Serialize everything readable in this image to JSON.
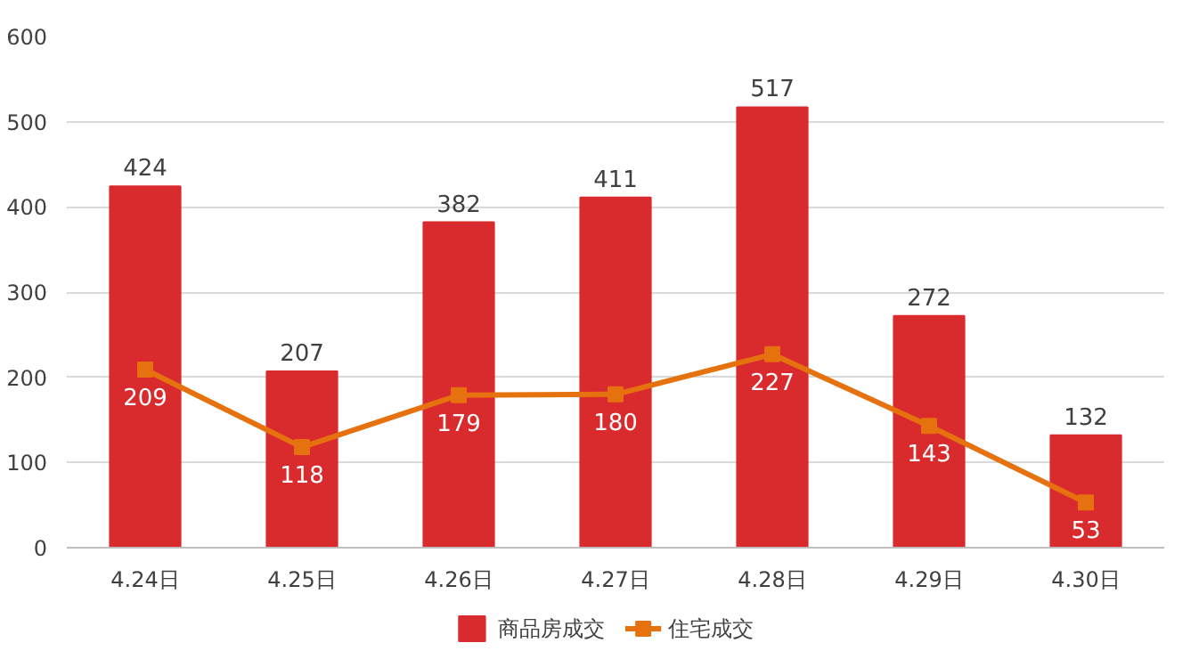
{
  "chart_data": {
    "type": "bar",
    "categories": [
      "4.24日",
      "4.25日",
      "4.26日",
      "4.27日",
      "4.28日",
      "4.29日",
      "4.30日"
    ],
    "series": [
      {
        "name": "商品房成交",
        "color": "#d92b2e",
        "values": [
          424,
          207,
          382,
          411,
          517,
          272,
          132
        ]
      },
      {
        "name": "住宅成交",
        "type": "line",
        "color": "#e6720f",
        "marker": "square",
        "values": [
          209,
          118,
          179,
          180,
          227,
          143,
          53
        ]
      }
    ],
    "ylim": [
      0,
      600
    ],
    "yticks": [
      0,
      100,
      200,
      300,
      400,
      500,
      600
    ],
    "grid": "y",
    "legend": "bottom",
    "data_labels": true
  }
}
